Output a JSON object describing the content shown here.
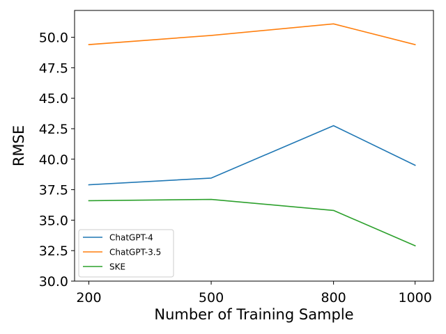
{
  "chart_data": {
    "type": "line",
    "title": "",
    "xlabel": "Number of Training Sample",
    "ylabel": "RMSE",
    "x": [
      200,
      500,
      800,
      1000
    ],
    "xticks": [
      "200",
      "500",
      "800",
      "1000"
    ],
    "yticks": [
      "30.0",
      "32.5",
      "35.0",
      "37.5",
      "40.0",
      "42.5",
      "45.0",
      "47.5",
      "50.0"
    ],
    "xlim": [
      165,
      1045
    ],
    "ylim": [
      30.0,
      52.2
    ],
    "grid": false,
    "legend_position": "lower-left",
    "series": [
      {
        "name": "ChatGPT-4",
        "color": "#1f77b4",
        "values": [
          37.9,
          38.45,
          42.75,
          39.5
        ]
      },
      {
        "name": "ChatGPT-3.5",
        "color": "#ff7f0e",
        "values": [
          49.4,
          50.15,
          51.1,
          49.4
        ]
      },
      {
        "name": "SKE",
        "color": "#2ca02c",
        "values": [
          36.6,
          36.7,
          35.8,
          32.9
        ]
      }
    ]
  }
}
